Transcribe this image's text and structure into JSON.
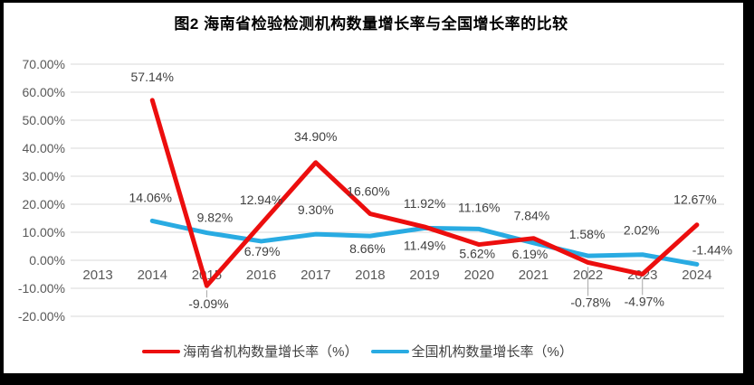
{
  "page": {
    "background": "#FFFFFF",
    "frame_color": "#000000"
  },
  "chart_data": {
    "type": "line",
    "title": "图2 海南省检验检测机构数量增长率与全国增长率的比较",
    "categories": [
      "2013",
      "2014",
      "2015",
      "2016",
      "2017",
      "2018",
      "2019",
      "2020",
      "2021",
      "2022",
      "2023",
      "2024"
    ],
    "series": [
      {
        "name": "海南省机构数量增长率（%）",
        "color": "#EC0E0E",
        "values": [
          null,
          57.14,
          -9.09,
          12.94,
          34.9,
          16.6,
          11.92,
          5.62,
          7.84,
          -0.78,
          -4.97,
          12.67
        ],
        "labels": [
          null,
          "57.14%",
          "-9.09%",
          "12.94%",
          "34.90%",
          "16.60%",
          "11.92%",
          "5.62%",
          "7.84%",
          "-0.78%",
          "-4.97%",
          "12.67%"
        ]
      },
      {
        "name": "全国机构数量增长率（%）",
        "color": "#29ABE2",
        "values": [
          null,
          14.06,
          9.82,
          6.79,
          9.3,
          8.66,
          11.49,
          11.16,
          6.19,
          1.58,
          2.02,
          -1.44
        ],
        "labels": [
          null,
          "14.06%",
          "9.82%",
          "6.79%",
          "9.30%",
          "8.66%",
          "11.49%",
          "11.16%",
          "6.19%",
          "1.58%",
          "2.02%",
          "-1.44%"
        ]
      }
    ],
    "y_axis": {
      "min": -20,
      "max": 70,
      "step": 10,
      "tick_labels": [
        "70.00%",
        "60.00%",
        "50.00%",
        "40.00%",
        "30.00%",
        "20.00%",
        "10.00%",
        "0.00%",
        "-10.00%",
        "-20.00%"
      ]
    },
    "grid": true,
    "legend_position": "bottom",
    "colors": {
      "grid_line": "#D9D9D9",
      "axis_text": "#595959",
      "data_label_text": "#404040",
      "leader_line": "#A6A6A6"
    }
  }
}
